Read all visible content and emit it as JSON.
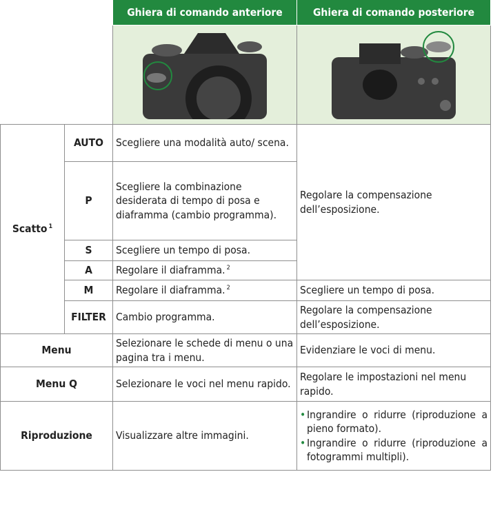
{
  "header": {
    "front": "Ghiera di comando anteriore",
    "rear": "Ghiera di comando posteriore"
  },
  "shooting": {
    "label": "Scatto",
    "note": "1",
    "rear": "Regolare la compensazione dell’esposizione.",
    "modes": [
      {
        "mode": "AUTO",
        "front": "Scegliere una modalità auto/ scena."
      },
      {
        "mode": "P",
        "front": "Scegliere la combinazione desiderata di tempo di posa e diaframma (cambio programma)."
      },
      {
        "mode": "S",
        "front": "Scegliere un tempo di posa."
      },
      {
        "mode": "A",
        "front": "Regolare il diaframma.",
        "note": "2"
      },
      {
        "mode": "M",
        "front": "Regolare il diaframma.",
        "note": "2",
        "rear": "Scegliere un tempo di posa."
      },
      {
        "mode": "FILTER",
        "front": "Cambio programma.",
        "rear": "Regolare la compensazione dell’esposizione."
      }
    ]
  },
  "rows": [
    {
      "label": "Menu",
      "front": "Selezionare le schede di menu o una pagina tra i menu.",
      "rear": "Evidenziare le voci di menu."
    },
    {
      "label": "Menu Q",
      "front": "Selezionare le voci nel menu rapido.",
      "rear": "Regolare le impostazioni nel menu rapido."
    },
    {
      "label": "Riproduzione",
      "front": "Visualizzare altre immagini.",
      "rear": [
        "Ingrandire o ridurre (riproduzione a pieno formato).",
        "Ingrandire o ridurre (riproduzione a fotogrammi multipli)."
      ]
    }
  ]
}
